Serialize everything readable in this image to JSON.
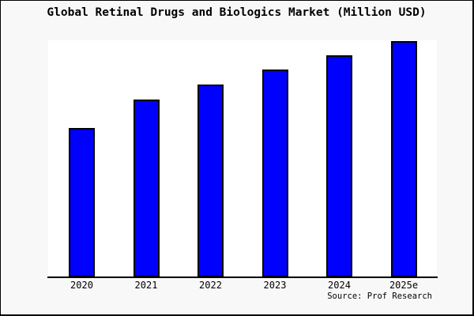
{
  "source": "Source: Prof Research",
  "colors": {
    "bar_fill": "#0000ff",
    "bar_border": "#000000",
    "page_background": "#f8f8f8",
    "plot_background": "#ffffff",
    "axis_line": "#000000",
    "text": "#000000"
  },
  "chart_data": {
    "type": "bar",
    "title": "Global Retinal Drugs and Biologics Market (Million USD)",
    "categories": [
      "2020",
      "2021",
      "2022",
      "2023",
      "2024",
      "2025e"
    ],
    "values": [
      63.2,
      75.3,
      81.6,
      88.0,
      94.0,
      100.0
    ],
    "values_note": "Relative bar heights in % of tallest bar (2025e); chart displays no numeric y-axis, gridlines or data labels",
    "xlabel": "",
    "ylabel": "",
    "ylim": [
      0,
      100
    ],
    "y_axis_shown": false,
    "gridlines": false,
    "legend": false
  }
}
